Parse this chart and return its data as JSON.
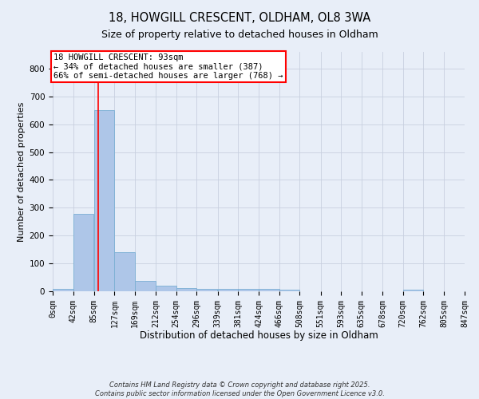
{
  "title1": "18, HOWGILL CRESCENT, OLDHAM, OL8 3WA",
  "title2": "Size of property relative to detached houses in Oldham",
  "xlabel": "Distribution of detached houses by size in Oldham",
  "ylabel": "Number of detached properties",
  "bar_color": "#aec6e8",
  "bar_edgecolor": "#7aafd4",
  "vline_x": 93,
  "vline_color": "red",
  "annotation_text": "18 HOWGILL CRESCENT: 93sqm\n← 34% of detached houses are smaller (387)\n66% of semi-detached houses are larger (768) →",
  "annotation_box_color": "white",
  "annotation_box_edgecolor": "red",
  "bin_edges": [
    0,
    42,
    85,
    127,
    169,
    212,
    254,
    296,
    339,
    381,
    424,
    466,
    508,
    551,
    593,
    635,
    678,
    720,
    762,
    805,
    847
  ],
  "bin_labels": [
    "0sqm",
    "42sqm",
    "85sqm",
    "127sqm",
    "169sqm",
    "212sqm",
    "254sqm",
    "296sqm",
    "339sqm",
    "381sqm",
    "424sqm",
    "466sqm",
    "508sqm",
    "551sqm",
    "593sqm",
    "635sqm",
    "678sqm",
    "720sqm",
    "762sqm",
    "805sqm",
    "847sqm"
  ],
  "bar_heights": [
    8,
    278,
    650,
    140,
    38,
    20,
    12,
    10,
    8,
    10,
    8,
    5,
    0,
    0,
    0,
    0,
    0,
    5,
    0,
    0,
    0
  ],
  "yticks": [
    0,
    100,
    200,
    300,
    400,
    500,
    600,
    700,
    800
  ],
  "ylim": [
    0,
    860
  ],
  "background_color": "#e8eef8",
  "grid_color": "#c8d0e0",
  "footer_text": "Contains HM Land Registry data © Crown copyright and database right 2025.\nContains public sector information licensed under the Open Government Licence v3.0.",
  "title1_fontsize": 10.5,
  "title2_fontsize": 9,
  "xlabel_fontsize": 8.5,
  "ylabel_fontsize": 8,
  "tick_fontsize": 7,
  "footer_fontsize": 6,
  "annotation_fontsize": 7.5
}
